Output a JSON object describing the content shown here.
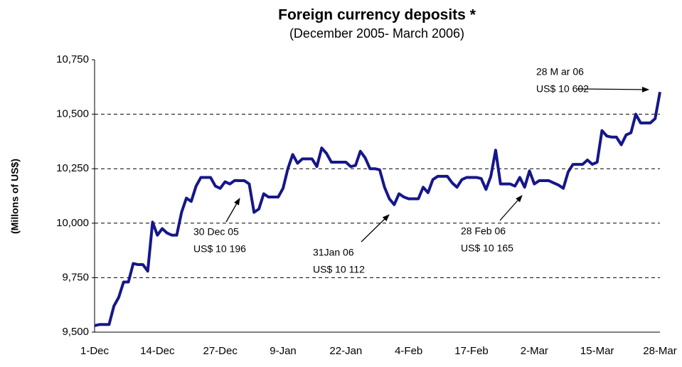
{
  "chart_data": {
    "type": "line",
    "title": "Foreign currency deposits *",
    "subtitle": "(December 2005- March 2006)",
    "y_label": "(Millons of US$)",
    "categories": [
      "1-Dec",
      null,
      null,
      null,
      null,
      null,
      null,
      null,
      null,
      null,
      null,
      null,
      null,
      "14-Dec",
      null,
      null,
      null,
      null,
      null,
      null,
      null,
      null,
      null,
      null,
      null,
      null,
      "27-Dec",
      null,
      null,
      null,
      null,
      null,
      null,
      null,
      null,
      null,
      null,
      null,
      null,
      "9-Jan",
      null,
      null,
      null,
      null,
      null,
      null,
      null,
      null,
      null,
      null,
      null,
      null,
      "22-Jan",
      null,
      null,
      null,
      null,
      null,
      null,
      null,
      null,
      null,
      null,
      null,
      null,
      "4-Feb",
      null,
      null,
      null,
      null,
      null,
      null,
      null,
      null,
      null,
      null,
      null,
      null,
      "17-Feb",
      null,
      null,
      null,
      null,
      null,
      null,
      null,
      null,
      null,
      null,
      null,
      null,
      "2-Mar",
      null,
      null,
      null,
      null,
      null,
      null,
      null,
      null,
      null,
      null,
      null,
      null,
      "15-Mar",
      null,
      null,
      null,
      null,
      null,
      null,
      null,
      null,
      null,
      null,
      null,
      null,
      "28-Mar"
    ],
    "series": [
      {
        "color": "#16168a",
        "values": [
          9530,
          9535,
          9535,
          9535,
          9620,
          9660,
          9730,
          9730,
          9815,
          9810,
          9810,
          9780,
          10005,
          9945,
          9975,
          9955,
          9945,
          9945,
          10050,
          10115,
          10100,
          10170,
          10210,
          10210,
          10210,
          10170,
          10160,
          10190,
          10180,
          10196,
          10195,
          10195,
          10180,
          10050,
          10065,
          10135,
          10120,
          10120,
          10120,
          10160,
          10250,
          10315,
          10275,
          10295,
          10295,
          10295,
          10260,
          10345,
          10320,
          10280,
          10280,
          10280,
          10280,
          10260,
          10265,
          10330,
          10300,
          10250,
          10250,
          10245,
          10165,
          10112,
          10085,
          10135,
          10120,
          10112,
          10112,
          10112,
          10165,
          10140,
          10200,
          10215,
          10215,
          10215,
          10185,
          10165,
          10200,
          10210,
          10210,
          10210,
          10205,
          10155,
          10215,
          10335,
          10180,
          10180,
          10180,
          10170,
          10210,
          10165,
          10240,
          10180,
          10195,
          10195,
          10195,
          10185,
          10175,
          10160,
          10235,
          10270,
          10270,
          10270,
          10290,
          10270,
          10280,
          10425,
          10400,
          10395,
          10395,
          10360,
          10405,
          10415,
          10500,
          10460,
          10460,
          10460,
          10480,
          10602
        ]
      }
    ],
    "ylim": [
      9500,
      10750
    ],
    "yticks": [
      {
        "value": 9500,
        "label": "9,500"
      },
      {
        "value": 9750,
        "label": "9,750"
      },
      {
        "value": 10000,
        "label": "10,000"
      },
      {
        "value": 10250,
        "label": "10,250"
      },
      {
        "value": 10500,
        "label": "10,500"
      },
      {
        "value": 10750,
        "label": "10,750"
      }
    ],
    "grid": true,
    "annotations": [
      {
        "lines": [
          "30 Dec 05",
          "US$ 10 196"
        ]
      },
      {
        "lines": [
          "31Jan 06",
          "US$ 10 112"
        ]
      },
      {
        "lines": [
          "28 Feb 06",
          "US$ 10 165"
        ]
      },
      {
        "lines": [
          "28 M ar 06",
          "US$ 10 602"
        ]
      }
    ]
  }
}
